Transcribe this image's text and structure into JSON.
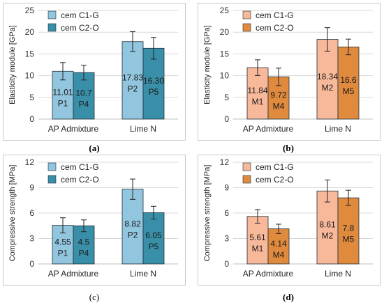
{
  "panels": [
    {
      "caption": "(a)",
      "chart_data": {
        "type": "bar",
        "ylabel": "Elasticity module  [GPa]",
        "ylim": [
          0,
          25
        ],
        "yticks": [
          0,
          5,
          10,
          15,
          20,
          25
        ],
        "categories": [
          "AP Admixture",
          "Lime N"
        ],
        "legend_position": "top-left",
        "grid": true,
        "series": [
          {
            "name": "cem C1-G",
            "color": "#92c5de",
            "values": [
              11.01,
              17.83
            ],
            "errors": [
              2.0,
              2.3
            ],
            "labels": [
              "11.01",
              "17.83"
            ],
            "codes": [
              "P1",
              "P2"
            ]
          },
          {
            "name": "cem C2-O",
            "color": "#3a8fa8",
            "values": [
              10.7,
              16.3
            ],
            "errors": [
              1.7,
              2.5
            ],
            "labels": [
              "10.7",
              "16.30"
            ],
            "codes": [
              "P4",
              "P5"
            ]
          }
        ]
      }
    },
    {
      "caption": "(b)",
      "chart_data": {
        "type": "bar",
        "ylabel": "Elasticity module  [GPa]",
        "ylim": [
          0,
          25
        ],
        "yticks": [
          0,
          5,
          10,
          15,
          20,
          25
        ],
        "categories": [
          "AP Admixture",
          "Lime N"
        ],
        "legend_position": "top-left",
        "grid": true,
        "series": [
          {
            "name": "cem C1-G",
            "color": "#f8b89a",
            "values": [
              11.84,
              18.34
            ],
            "errors": [
              1.8,
              2.7
            ],
            "labels": [
              "11.84",
              "18.34"
            ],
            "codes": [
              "M1",
              "M2"
            ]
          },
          {
            "name": "cem C2-O",
            "color": "#e08a3e",
            "values": [
              9.72,
              16.6
            ],
            "errors": [
              2.0,
              1.8
            ],
            "labels": [
              "9.72",
              "16.6"
            ],
            "codes": [
              "M4",
              "M5"
            ]
          }
        ]
      }
    },
    {
      "caption": "(c)",
      "chart_data": {
        "type": "bar",
        "ylabel": "Compressive strength [MPa]",
        "ylim": [
          0,
          12
        ],
        "yticks": [
          0,
          3,
          6,
          9,
          12
        ],
        "categories": [
          "AP Admixture",
          "Lime N"
        ],
        "legend_position": "top-left",
        "grid": true,
        "series": [
          {
            "name": "cem C1-G",
            "color": "#92c5de",
            "values": [
              4.55,
              8.82
            ],
            "errors": [
              0.9,
              1.2
            ],
            "labels": [
              "4.55",
              "8.82"
            ],
            "codes": [
              "P1",
              "P2"
            ]
          },
          {
            "name": "cem C2-O",
            "color": "#3a8fa8",
            "values": [
              4.5,
              6.05
            ],
            "errors": [
              0.7,
              0.75
            ],
            "labels": [
              "4.5",
              "6.05"
            ],
            "codes": [
              "P4",
              "P5"
            ]
          }
        ]
      }
    },
    {
      "caption": "(d)",
      "chart_data": {
        "type": "bar",
        "ylabel": "Compressive strength [MPa]",
        "ylim": [
          0,
          12
        ],
        "yticks": [
          0,
          3,
          6,
          9,
          12
        ],
        "categories": [
          "AP Admixture",
          "Lime N"
        ],
        "legend_position": "top-left",
        "grid": true,
        "series": [
          {
            "name": "cem C1-G",
            "color": "#f8b89a",
            "values": [
              5.61,
              8.61
            ],
            "errors": [
              0.8,
              1.3
            ],
            "labels": [
              "5.61",
              "8.61"
            ],
            "codes": [
              "M1",
              "M2"
            ]
          },
          {
            "name": "cem C2-O",
            "color": "#e08a3e",
            "values": [
              4.14,
              7.8
            ],
            "errors": [
              0.55,
              0.9
            ],
            "labels": [
              "4.14",
              "7.8"
            ],
            "codes": [
              "M4",
              "M5"
            ]
          }
        ]
      }
    }
  ]
}
